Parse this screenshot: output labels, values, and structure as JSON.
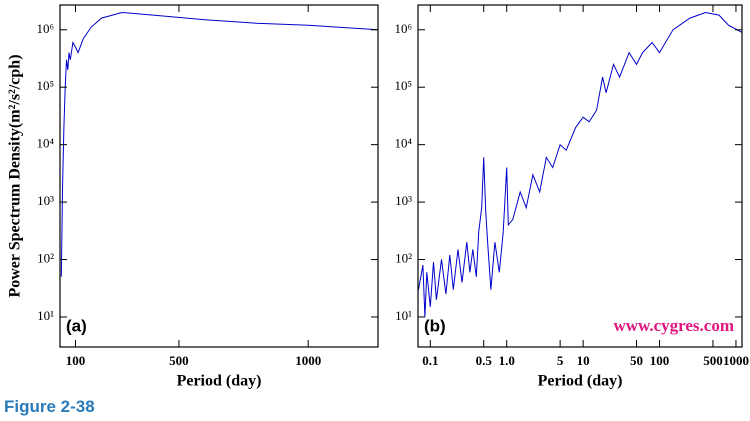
{
  "chart_data": [
    {
      "type": "line",
      "log_y": true,
      "log_x": false,
      "color": "#0000cc",
      "y_label": "Power Spectrum Density(m²/s²/cph)",
      "x_label": "Period (day)",
      "panel_label": "(a)",
      "x": [
        45,
        50,
        55,
        60,
        65,
        70,
        75,
        80,
        90,
        100,
        110,
        130,
        160,
        200,
        280,
        400,
        600,
        800,
        1000,
        1270
      ],
      "values": [
        50,
        2000,
        20000,
        100000,
        300000,
        200000,
        400000,
        300000,
        600000,
        500000,
        400000,
        700000,
        1100000,
        1600000,
        2000000,
        1800000,
        1500000,
        1300000,
        1200000,
        1000000
      ],
      "xlim": [
        40,
        1270
      ],
      "xticks": [
        100,
        500,
        1000
      ],
      "ylim": [
        3,
        2700000
      ],
      "yticks": [
        {
          "value": 10,
          "label": "10¹"
        },
        {
          "value": 100,
          "label": "10²"
        },
        {
          "value": 1000,
          "label": "10³"
        },
        {
          "value": 10000,
          "label": "10⁴"
        },
        {
          "value": 100000,
          "label": "10⁵"
        },
        {
          "value": 1000000,
          "label": "10⁶"
        }
      ]
    },
    {
      "type": "line",
      "log_y": true,
      "log_x": true,
      "color": "#0000cc",
      "x_label": "Period (day)",
      "panel_label": "(b)",
      "annotation": "www.cygres.com",
      "x": [
        0.07,
        0.08,
        0.085,
        0.09,
        0.1,
        0.11,
        0.12,
        0.14,
        0.16,
        0.18,
        0.2,
        0.23,
        0.26,
        0.3,
        0.33,
        0.36,
        0.4,
        0.43,
        0.47,
        0.5,
        0.53,
        0.57,
        0.62,
        0.7,
        0.8,
        0.9,
        1.0,
        1.05,
        1.2,
        1.5,
        1.8,
        2.2,
        2.7,
        3.3,
        4,
        5,
        6,
        8,
        10,
        12,
        15,
        18,
        20,
        25,
        30,
        40,
        50,
        60,
        80,
        100,
        150,
        250,
        400,
        600,
        800,
        1200
      ],
      "values": [
        30,
        80,
        10,
        60,
        15,
        90,
        20,
        100,
        25,
        120,
        30,
        150,
        40,
        200,
        60,
        150,
        50,
        300,
        800,
        6000,
        700,
        150,
        30,
        200,
        60,
        300,
        4000,
        400,
        500,
        1500,
        800,
        3000,
        1500,
        6000,
        4000,
        10000,
        8000,
        20000,
        30000,
        25000,
        40000,
        150000,
        80000,
        250000,
        150000,
        400000,
        250000,
        400000,
        600000,
        400000,
        1000000,
        1600000,
        2000000,
        1800000,
        1200000,
        900000
      ],
      "xlim": [
        0.069,
        1200
      ],
      "xticks": [
        0.1,
        0.5,
        {
          "value": 1,
          "label": "1.0"
        },
        5,
        10,
        50,
        100,
        500,
        1000
      ],
      "ylim": [
        3,
        2700000
      ],
      "yticks": [
        {
          "value": 10,
          "label": "10¹"
        },
        {
          "value": 100,
          "label": "10²"
        },
        {
          "value": 1000,
          "label": "10³"
        },
        {
          "value": 10000,
          "label": "10⁴"
        },
        {
          "value": 100000,
          "label": "10⁵"
        },
        {
          "value": 1000000,
          "label": "10⁶"
        }
      ]
    }
  ],
  "caption": "Figure 2-38"
}
